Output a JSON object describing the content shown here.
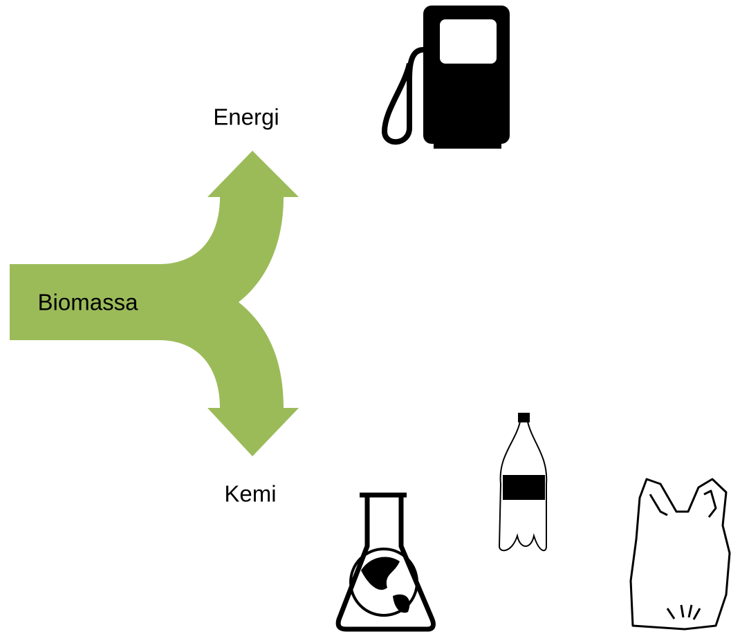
{
  "nodes": [
    {
      "label": "Biomassa"
    },
    {
      "label": "Energi"
    },
    {
      "label": "Kemi"
    }
  ]
}
